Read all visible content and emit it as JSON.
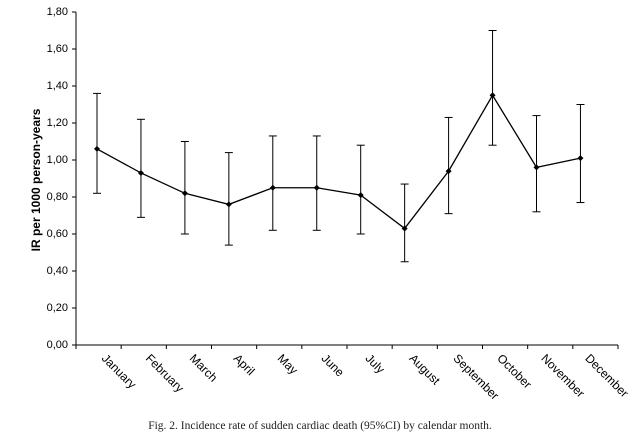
{
  "chart_data": {
    "type": "line",
    "title": "",
    "xlabel": "",
    "ylabel": "IR per 1000 person-years",
    "ylim": [
      0,
      1.8
    ],
    "y_ticks": [
      "0,00",
      "0,20",
      "0,40",
      "0,60",
      "0,80",
      "1,00",
      "1,20",
      "1,40",
      "1,60",
      "1,80"
    ],
    "y_tick_values": [
      0,
      0.2,
      0.4,
      0.6,
      0.8,
      1.0,
      1.2,
      1.4,
      1.6,
      1.8
    ],
    "grid": false,
    "categories": [
      "January",
      "February",
      "March",
      "April",
      "May",
      "June",
      "July",
      "August",
      "September",
      "October",
      "November",
      "December"
    ],
    "series": [
      {
        "name": "Incidence rate",
        "values": [
          1.06,
          0.93,
          0.82,
          0.76,
          0.85,
          0.85,
          0.81,
          0.63,
          0.94,
          1.35,
          0.96,
          1.01
        ],
        "ci_lower": [
          0.82,
          0.69,
          0.6,
          0.54,
          0.62,
          0.62,
          0.6,
          0.45,
          0.71,
          1.08,
          0.72,
          0.77
        ],
        "ci_upper": [
          1.36,
          1.22,
          1.1,
          1.04,
          1.13,
          1.13,
          1.08,
          0.87,
          1.23,
          1.7,
          1.24,
          1.3
        ]
      }
    ],
    "colors": {
      "line": "#000000",
      "axis": "#000000"
    }
  },
  "caption": "Fig. 2.  Incidence rate of sudden cardiac death (95%CI) by calendar month."
}
